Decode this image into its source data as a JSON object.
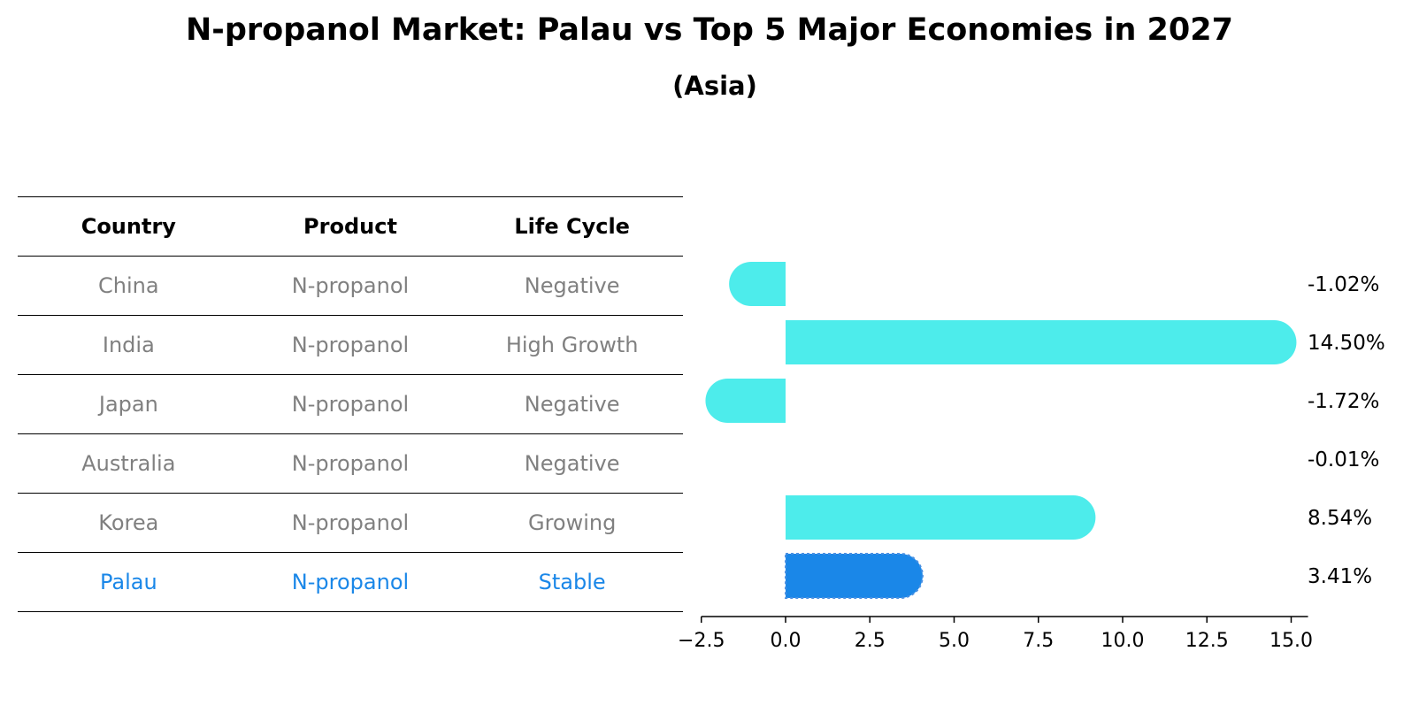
{
  "title": "N-propanol Market: Palau vs Top 5 Major Economies in 2027",
  "subtitle": "(Asia)",
  "table": {
    "headers": [
      "Country",
      "Product",
      "Life Cycle"
    ],
    "rows": [
      {
        "country": "China",
        "product": "N-propanol",
        "life_cycle": "Negative"
      },
      {
        "country": "India",
        "product": "N-propanol",
        "life_cycle": "High Growth"
      },
      {
        "country": "Japan",
        "product": "N-propanol",
        "life_cycle": "Negative"
      },
      {
        "country": "Australia",
        "product": "N-propanol",
        "life_cycle": "Negative"
      },
      {
        "country": "Korea",
        "product": "N-propanol",
        "life_cycle": "Growing"
      },
      {
        "country": "Palau",
        "product": "N-propanol",
        "life_cycle": "Stable"
      }
    ]
  },
  "colors": {
    "bar": "#4deceb",
    "highlight": "#1a87e8",
    "muted_text": "#808080"
  },
  "chart_data": {
    "type": "bar",
    "orientation": "horizontal",
    "categories": [
      "China",
      "India",
      "Japan",
      "Australia",
      "Korea",
      "Palau"
    ],
    "values": [
      -1.02,
      14.5,
      -1.72,
      -0.01,
      8.54,
      3.41
    ],
    "value_labels": [
      "-1.02%",
      "14.50%",
      "-1.72%",
      "-0.01%",
      "8.54%",
      "3.41%"
    ],
    "highlight_category": "Palau",
    "xlim": [
      -2.5,
      15.5
    ],
    "xticks": [
      -2.5,
      0.0,
      2.5,
      5.0,
      7.5,
      10.0,
      12.5,
      15.0
    ],
    "xtick_labels": [
      "−2.5",
      "0.0",
      "2.5",
      "5.0",
      "7.5",
      "10.0",
      "12.5",
      "15.0"
    ],
    "grid": false
  }
}
